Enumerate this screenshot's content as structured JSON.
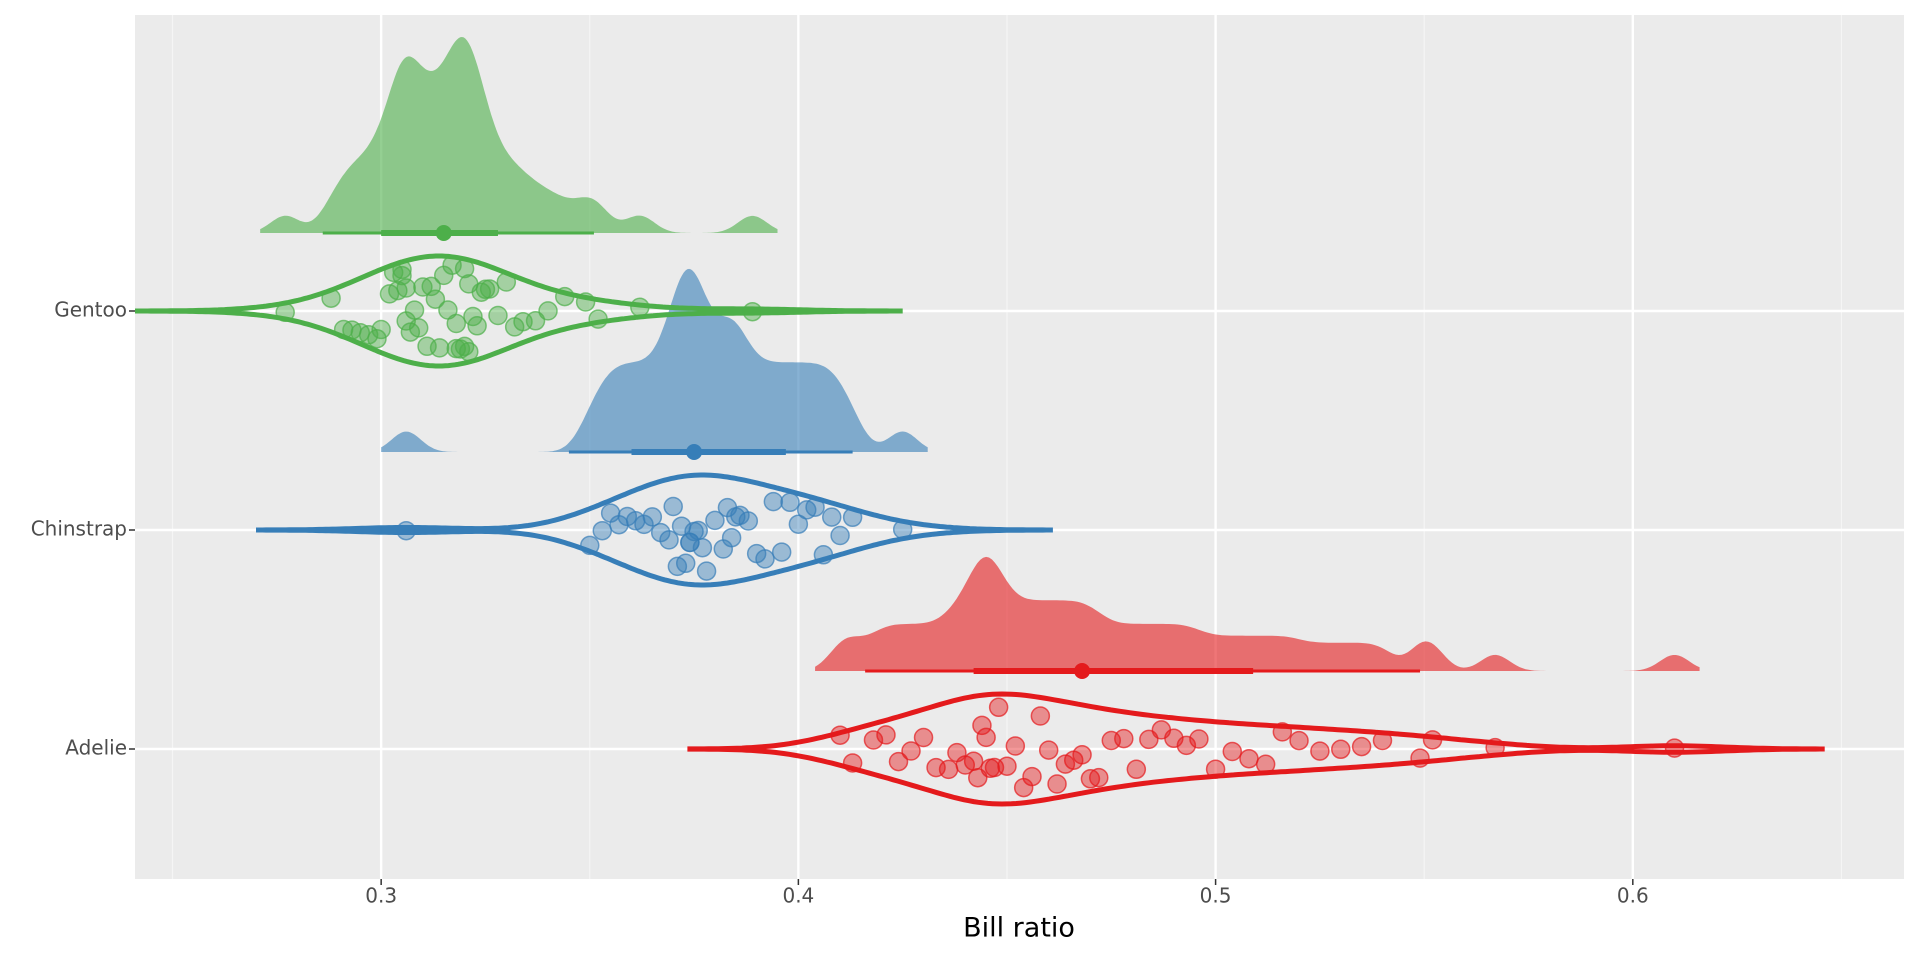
{
  "chart_data": {
    "type": "raincloud",
    "x_label": "Bill ratio",
    "xlim": [
      0.241,
      0.665
    ],
    "xticks": [
      0.3,
      0.4,
      0.5,
      0.6
    ],
    "x_minor_grid": [
      0.25,
      0.35,
      0.45,
      0.55,
      0.65
    ],
    "grid": true,
    "series": [
      {
        "name": "Adelie",
        "color": "#e41a1c",
        "median": 0.468,
        "interval_66": [
          0.442,
          0.509
        ],
        "interval_95": [
          0.416,
          0.549
        ],
        "values": [
          0.41,
          0.413,
          0.418,
          0.421,
          0.424,
          0.427,
          0.43,
          0.433,
          0.436,
          0.438,
          0.44,
          0.442,
          0.443,
          0.444,
          0.445,
          0.446,
          0.447,
          0.448,
          0.45,
          0.452,
          0.454,
          0.456,
          0.458,
          0.46,
          0.462,
          0.464,
          0.466,
          0.468,
          0.47,
          0.472,
          0.475,
          0.478,
          0.481,
          0.484,
          0.487,
          0.49,
          0.493,
          0.496,
          0.5,
          0.504,
          0.508,
          0.512,
          0.516,
          0.52,
          0.525,
          0.53,
          0.535,
          0.54,
          0.549,
          0.552,
          0.567,
          0.61
        ]
      },
      {
        "name": "Chinstrap",
        "color": "#377eb8",
        "median": 0.375,
        "interval_66": [
          0.36,
          0.397
        ],
        "interval_95": [
          0.345,
          0.413
        ],
        "values": [
          0.306,
          0.35,
          0.353,
          0.355,
          0.357,
          0.359,
          0.361,
          0.363,
          0.365,
          0.367,
          0.369,
          0.37,
          0.371,
          0.372,
          0.373,
          0.374,
          0.374,
          0.375,
          0.376,
          0.377,
          0.378,
          0.38,
          0.382,
          0.383,
          0.384,
          0.385,
          0.386,
          0.388,
          0.39,
          0.392,
          0.394,
          0.396,
          0.398,
          0.4,
          0.402,
          0.404,
          0.406,
          0.408,
          0.41,
          0.413,
          0.425
        ]
      },
      {
        "name": "Gentoo",
        "color": "#4daf4a",
        "median": 0.315,
        "interval_66": [
          0.3,
          0.328
        ],
        "interval_95": [
          0.286,
          0.351
        ],
        "values": [
          0.277,
          0.288,
          0.291,
          0.293,
          0.295,
          0.297,
          0.299,
          0.3,
          0.302,
          0.303,
          0.304,
          0.305,
          0.305,
          0.306,
          0.306,
          0.307,
          0.308,
          0.309,
          0.31,
          0.311,
          0.312,
          0.313,
          0.314,
          0.315,
          0.316,
          0.317,
          0.318,
          0.318,
          0.319,
          0.32,
          0.32,
          0.321,
          0.321,
          0.322,
          0.323,
          0.324,
          0.325,
          0.326,
          0.328,
          0.33,
          0.332,
          0.334,
          0.337,
          0.34,
          0.344,
          0.349,
          0.352,
          0.362,
          0.389
        ]
      }
    ]
  }
}
